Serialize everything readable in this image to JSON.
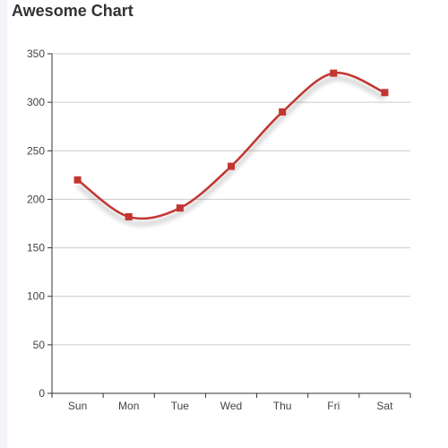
{
  "chart_data": {
    "type": "line",
    "title": "Awesome Chart",
    "smooth": true,
    "categories": [
      "Sun",
      "Mon",
      "Tue",
      "Wed",
      "Thu",
      "Fri",
      "Sat"
    ],
    "series": [
      {
        "values": [
          220,
          182,
          191,
          234,
          290,
          330,
          310
        ],
        "color": "#c23531",
        "marker": "square",
        "shadow": true
      }
    ],
    "ylim": [
      0,
      350
    ],
    "yticks": [
      0,
      50,
      100,
      150,
      200,
      250,
      300,
      350
    ],
    "grid": "horizontal",
    "xlabel": "",
    "ylabel": ""
  }
}
